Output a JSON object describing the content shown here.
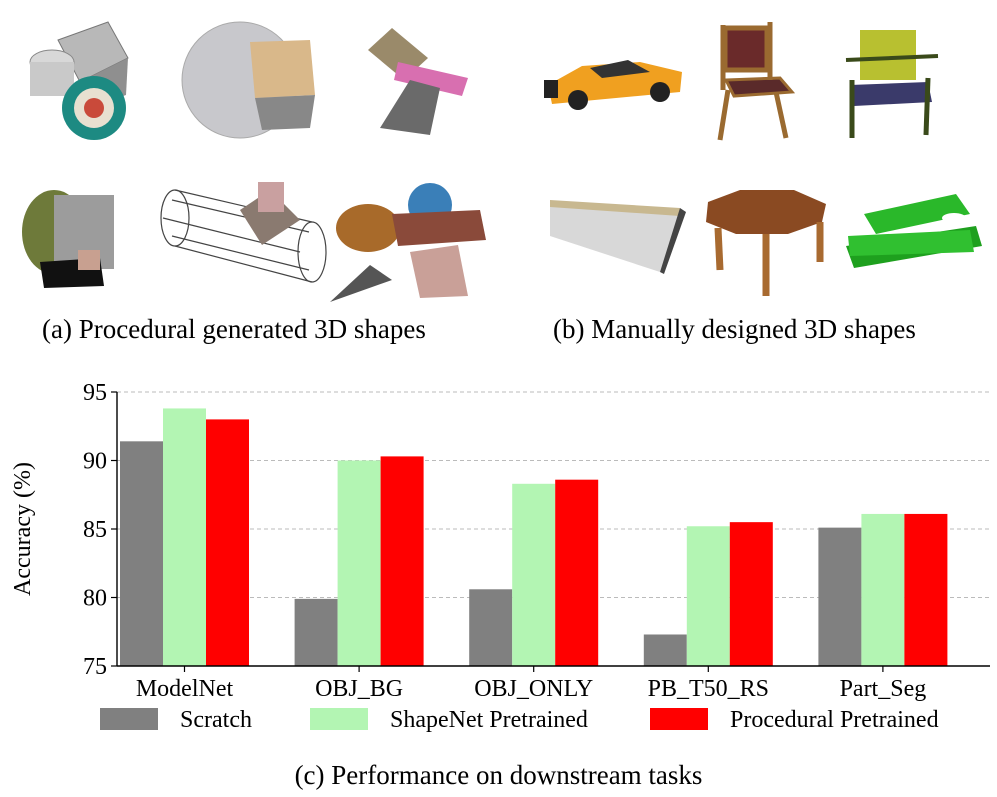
{
  "captions": {
    "a": "(a) Procedural generated 3D shapes",
    "b": "(b) Manually designed 3D shapes",
    "c": "(c) Performance on downstream tasks"
  },
  "thumbnails": {
    "procedural": [
      "box-drum-ball-shape",
      "sphere-box-shape",
      "twisted-panel-shape",
      "log-box-shape",
      "cage-cylinder-shape",
      "mixed-primitive-shape"
    ],
    "manual": [
      "sports-car",
      "wooden-chair",
      "armchair",
      "bench",
      "octagonal-table",
      "biplane"
    ]
  },
  "chart_data": {
    "type": "bar",
    "categories": [
      "ModelNet",
      "OBJ_BG",
      "OBJ_ONLY",
      "PB_T50_RS",
      "Part_Seg"
    ],
    "series": [
      {
        "name": "Scratch",
        "color": "#808080",
        "values": [
          91.4,
          79.9,
          80.6,
          77.3,
          85.1
        ]
      },
      {
        "name": "ShapeNet Pretrained",
        "color": "#b3f5b3",
        "values": [
          93.8,
          90.0,
          88.3,
          85.2,
          86.1
        ]
      },
      {
        "name": "Procedural Pretrained",
        "color": "#ff0000",
        "values": [
          93.0,
          90.3,
          88.6,
          85.5,
          86.1
        ]
      }
    ],
    "ylabel": "Accuracy (%)",
    "ylim": [
      75,
      95
    ],
    "yticks": [
      "75",
      "80",
      "85",
      "90",
      "95"
    ],
    "grid": "horizontal dashed",
    "legend": "bottom"
  }
}
